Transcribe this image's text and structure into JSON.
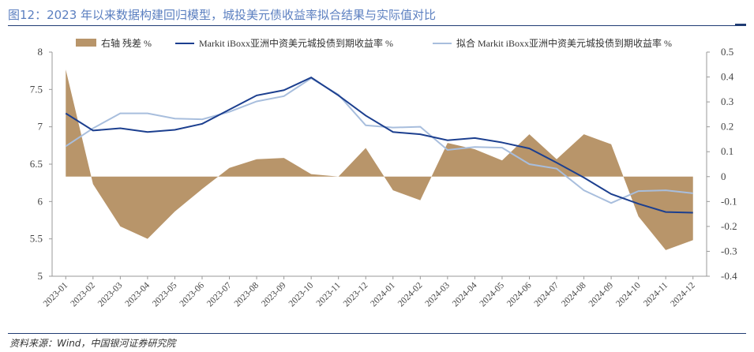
{
  "header": {
    "title": "图12：2023 年以来数据构建回归模型，城投美元债收益率拟合结果与实际值对比"
  },
  "footer": {
    "source": "资料来源：Wind，中国银河证券研究院"
  },
  "colors": {
    "residual": "#b8956a",
    "actual": "#1c3f8f",
    "fitted": "#a8bedd",
    "title": "#5b7fc0"
  },
  "chart_data": {
    "type": "line",
    "categories": [
      "2023-01",
      "2023-02",
      "2023-03",
      "2023-04",
      "2023-05",
      "2023-06",
      "2023-07",
      "2023-08",
      "2023-09",
      "2023-10",
      "2023-11",
      "2023-12",
      "2024-01",
      "2024-02",
      "2024-03",
      "2024-04",
      "2024-05",
      "2024-06",
      "2024-07",
      "2024-08",
      "2024-09",
      "2024-10",
      "2024-11",
      "2024-12"
    ],
    "left_axis": {
      "ylim": [
        5,
        8
      ],
      "ticks": [
        "8",
        "7.5",
        "7",
        "6.5",
        "6",
        "5.5",
        "5"
      ]
    },
    "right_axis": {
      "ylim": [
        -0.4,
        0.5
      ],
      "ticks": [
        "0.5",
        "0.4",
        "0.3",
        "0.2",
        "0.1",
        "0",
        "-0.1",
        "-0.2",
        "-0.3",
        "-0.4"
      ]
    },
    "legend": [
      "右轴 残差 %",
      "Markit iBoxx亚洲中资美元城投债到期收益率 %",
      "拟合 Markit iBoxx亚洲中资美元城投债到期收益率 %"
    ],
    "series": [
      {
        "name": "右轴 残差 %",
        "axis": "right",
        "kind": "area",
        "values": [
          0.43,
          -0.03,
          -0.2,
          -0.25,
          -0.14,
          -0.05,
          0.035,
          0.07,
          0.075,
          0.01,
          0.0,
          0.115,
          -0.055,
          -0.095,
          0.135,
          0.11,
          0.065,
          0.17,
          0.07,
          0.17,
          0.13,
          -0.16,
          -0.295,
          -0.255
        ]
      },
      {
        "name": "Markit iBoxx亚洲中资美元城投债到期收益率 %",
        "axis": "left",
        "kind": "line",
        "values": [
          7.18,
          6.95,
          6.98,
          6.93,
          6.96,
          7.04,
          7.23,
          7.42,
          7.49,
          7.66,
          7.42,
          7.15,
          6.93,
          6.9,
          6.82,
          6.85,
          6.79,
          6.71,
          6.52,
          6.32,
          6.1,
          5.97,
          5.86,
          5.85
        ]
      },
      {
        "name": "拟合 Markit iBoxx亚洲中资美元城投债到期收益率 %",
        "axis": "left",
        "kind": "line",
        "values": [
          6.74,
          6.98,
          7.18,
          7.18,
          7.11,
          7.1,
          7.2,
          7.34,
          7.41,
          7.65,
          7.43,
          7.02,
          6.99,
          7.0,
          6.69,
          6.73,
          6.72,
          6.5,
          6.44,
          6.15,
          5.98,
          6.14,
          6.15,
          6.11
        ]
      }
    ]
  }
}
